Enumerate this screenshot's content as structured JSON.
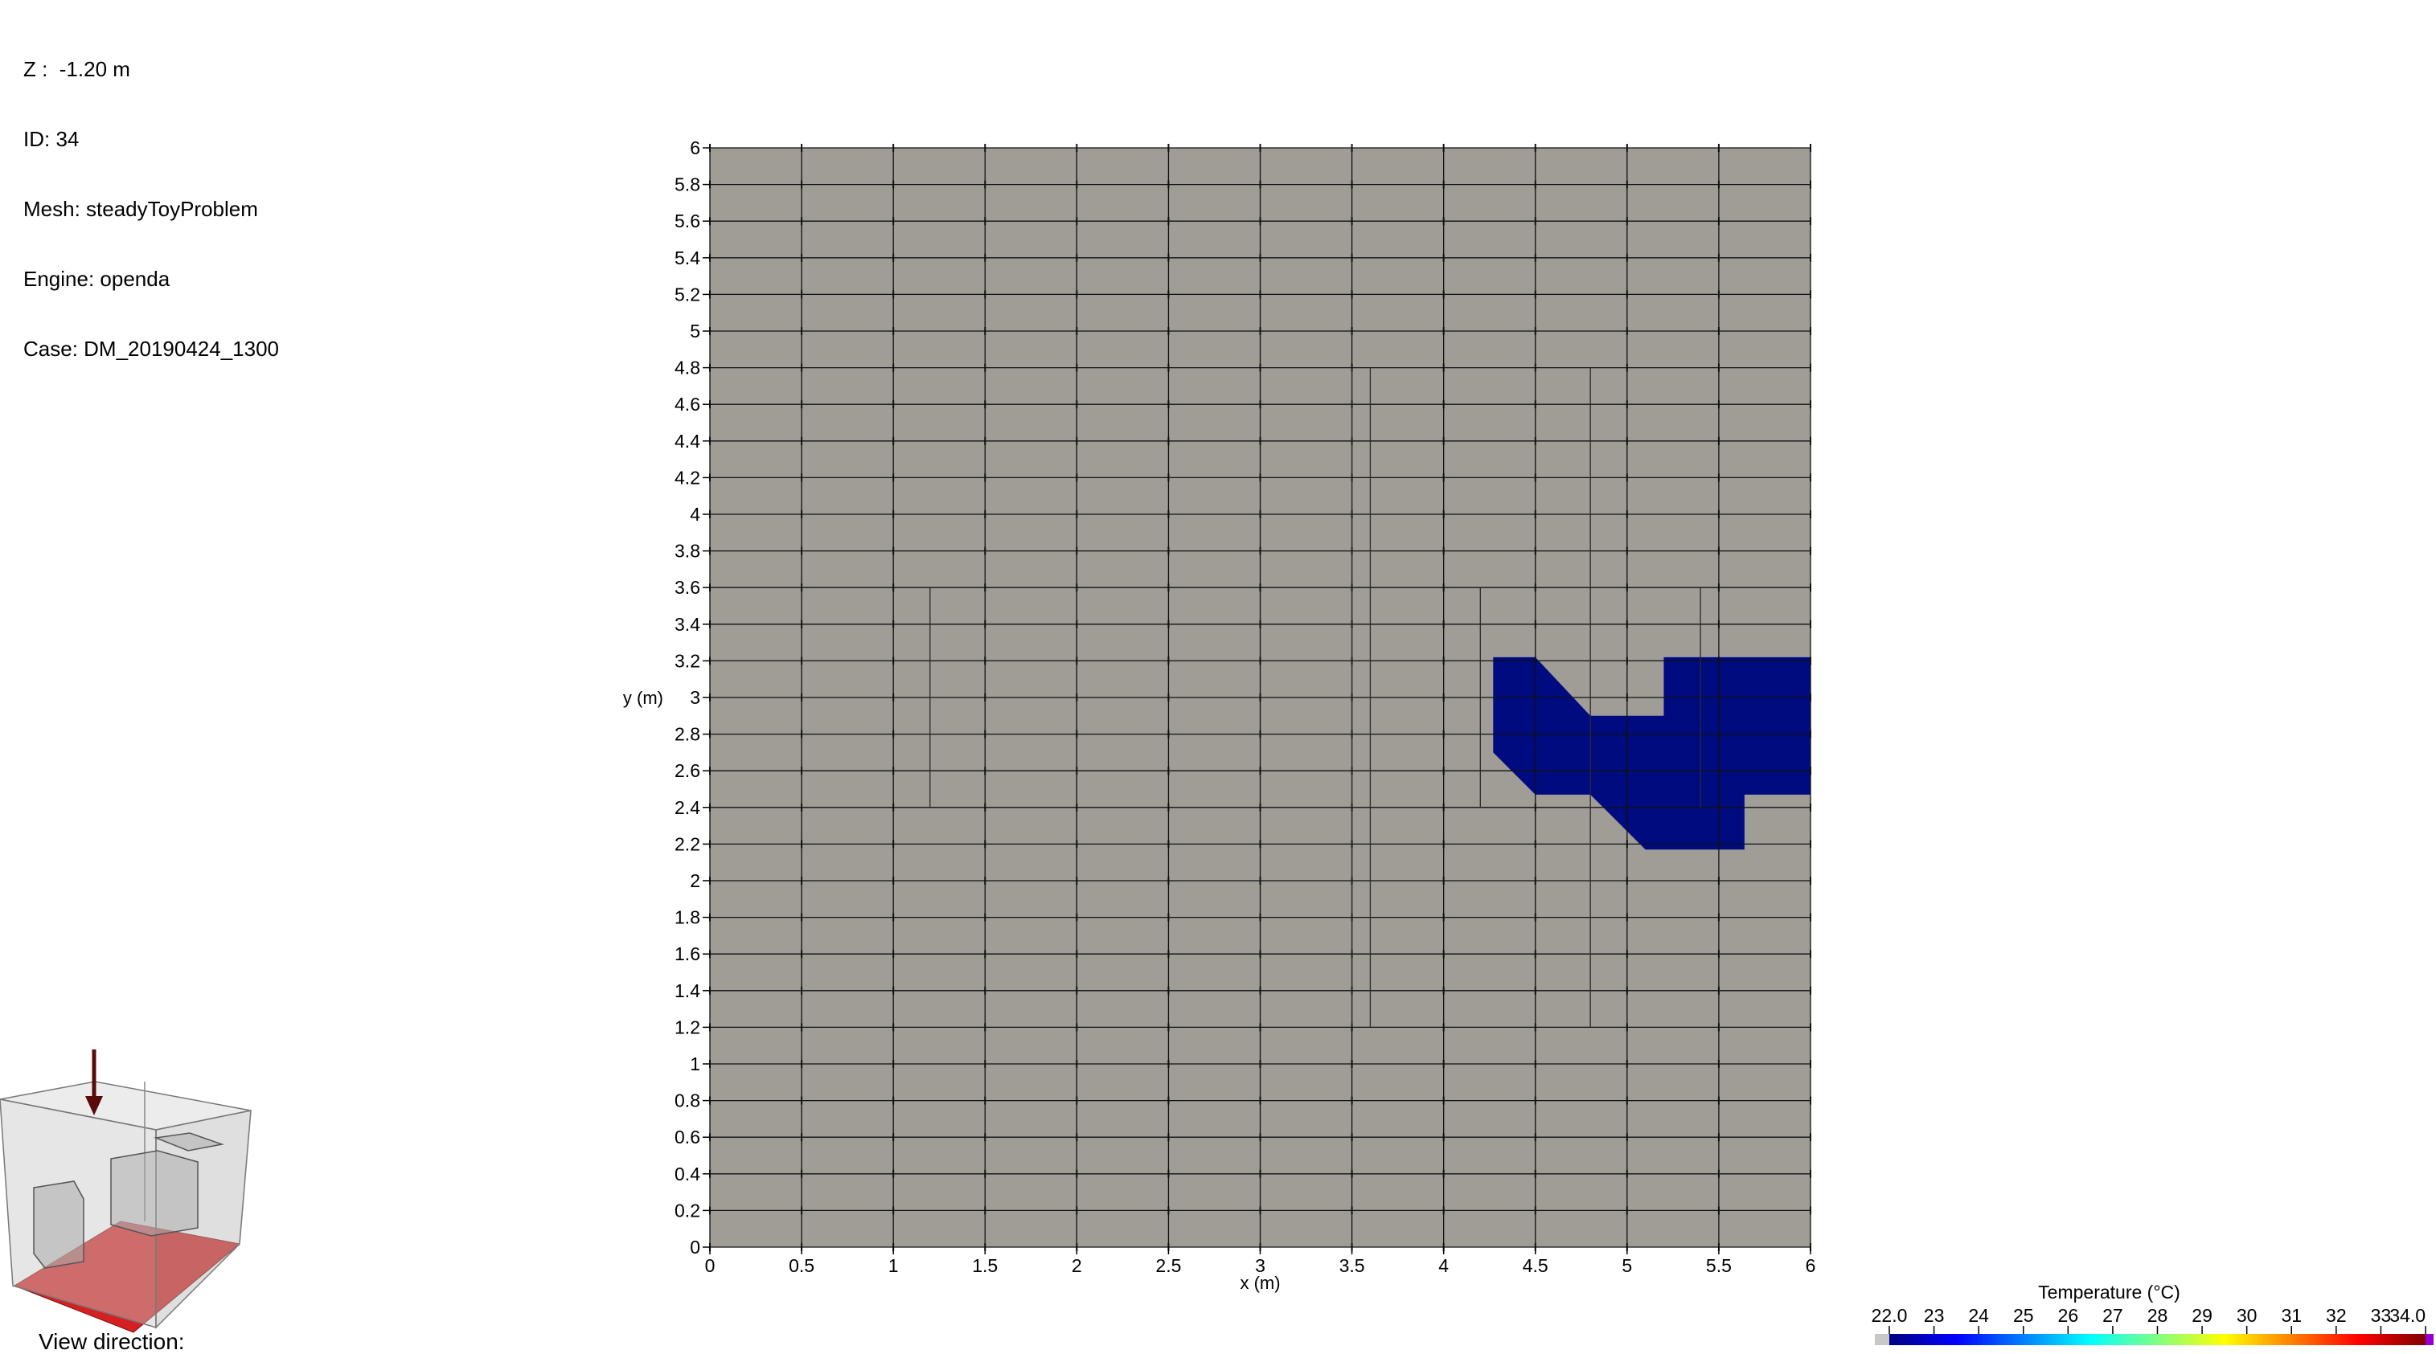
{
  "info": {
    "z": "Z :  -1.20 m",
    "id": "ID: 34",
    "mesh": "Mesh: steadyToyProblem",
    "engine": "Engine: openda",
    "case": "Case: DM_20190424_1300"
  },
  "view_direction_label": "View direction:",
  "chart_data": {
    "type": "heatmap",
    "title": "",
    "xlabel": "x (m)",
    "ylabel": "y (m)",
    "xlim": [
      0,
      6
    ],
    "ylim": [
      0,
      6
    ],
    "x_ticks": [
      0,
      0.5,
      1,
      1.5,
      2,
      2.5,
      3,
      3.5,
      4,
      4.5,
      5,
      5.5,
      6
    ],
    "x_tick_labels": [
      "0",
      "0.5",
      "1",
      "1.5",
      "2",
      "2.5",
      "3",
      "3.5",
      "4",
      "4.5",
      "5",
      "5.5",
      "6"
    ],
    "y_ticks": [
      0,
      0.2,
      0.4,
      0.6,
      0.8,
      1,
      1.2,
      1.4,
      1.6,
      1.8,
      2,
      2.2,
      2.4,
      2.6,
      2.8,
      3,
      3.2,
      3.4,
      3.6,
      3.8,
      4,
      4.2,
      4.4,
      4.6,
      4.8,
      5,
      5.2,
      5.4,
      5.6,
      5.8,
      6
    ],
    "y_tick_labels": [
      "0",
      "0.2",
      "0.4",
      "0.6",
      "0.8",
      "1",
      "1.2",
      "1.4",
      "1.6",
      "1.8",
      "2",
      "2.2",
      "2.4",
      "2.6",
      "2.8",
      "3",
      "3.2",
      "3.4",
      "3.6",
      "3.8",
      "4",
      "4.2",
      "4.4",
      "4.6",
      "4.8",
      "5",
      "5.2",
      "5.4",
      "5.6",
      "5.8",
      "6"
    ],
    "grid": true,
    "background_color": "#a09c96",
    "grid_color": "#111111",
    "obstacle_lines": [
      {
        "x": [
          1.2,
          1.2
        ],
        "y": [
          2.4,
          3.6
        ]
      },
      {
        "x": [
          3.5,
          3.5
        ],
        "y": [
          1.2,
          4.8
        ]
      },
      {
        "x": [
          3.6,
          3.6
        ],
        "y": [
          1.2,
          4.8
        ]
      },
      {
        "x": [
          4.2,
          4.2
        ],
        "y": [
          2.4,
          3.6
        ]
      },
      {
        "x": [
          4.8,
          4.8
        ],
        "y": [
          1.2,
          4.8
        ]
      },
      {
        "x": [
          5.4,
          5.4
        ],
        "y": [
          2.4,
          3.6
        ]
      }
    ],
    "region_color": "#000b80",
    "regions": [
      [
        [
          4.27,
          3.22
        ],
        [
          4.5,
          3.22
        ],
        [
          4.8,
          2.9
        ],
        [
          5.2,
          2.9
        ],
        [
          5.2,
          3.22
        ],
        [
          6.0,
          3.22
        ],
        [
          6.0,
          2.47
        ],
        [
          5.64,
          2.47
        ],
        [
          5.64,
          2.17
        ],
        [
          5.1,
          2.17
        ],
        [
          4.8,
          2.47
        ],
        [
          4.5,
          2.47
        ],
        [
          4.27,
          2.7
        ]
      ]
    ],
    "colorbar": {
      "title": "Temperature (°C)",
      "min": 22.0,
      "max": 34.0,
      "tick_labels": [
        "22.0",
        "23",
        "24",
        "25",
        "26",
        "27",
        "28",
        "29",
        "30",
        "31",
        "32",
        "33",
        "34.0"
      ],
      "colors": [
        "#000080",
        "#0000ff",
        "#0080ff",
        "#00ffff",
        "#80ff80",
        "#ffff00",
        "#ff8000",
        "#ff0000",
        "#800000"
      ],
      "below_color": "#c8c8c8",
      "above_color": "#9400d3"
    }
  },
  "orientation_widget": {
    "arrow_color": "#5a0a0a",
    "floor_color": "#d42020",
    "box_color": "#d8d8d8"
  }
}
